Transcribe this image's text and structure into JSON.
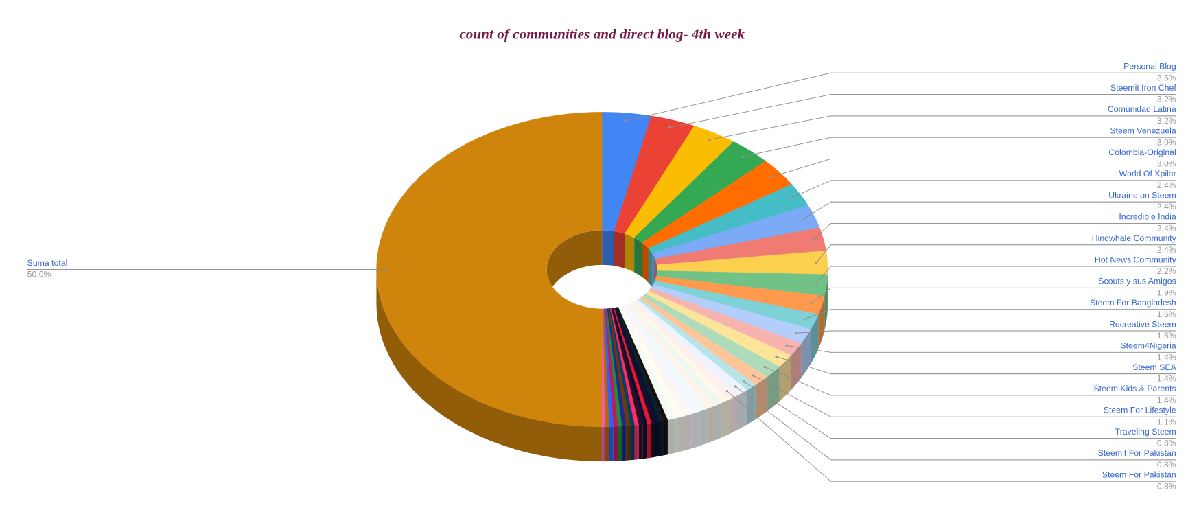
{
  "chart_data": {
    "type": "pie",
    "donut": true,
    "three_d": true,
    "title": "count of communities and direct blog- 4th week",
    "categories": [
      "Personal Blog",
      "Steemit Iron Chef",
      "Comunidad Latina",
      "Steem Venezuela",
      "Colombia-Original",
      "World Of Xpilar",
      "Ukraine on Steem",
      "Incredible India",
      "Hindwhale Community",
      "Hot News Community",
      "Scouts y sus Amigos",
      "Steem For Bangladesh",
      "Recreative Steem",
      "Steem4Nigeria",
      "Steem SEA",
      "Steem Kids & Parents",
      "Steem For Lifestyle",
      "Traveling Steem",
      "Steemit For Pakistan",
      "Steem For Pakistan",
      null,
      null,
      null,
      null,
      null,
      null,
      null,
      null,
      null,
      null,
      null,
      null,
      null,
      null,
      null,
      null,
      null,
      null,
      null,
      null,
      null,
      null,
      null,
      null,
      "Suma total"
    ],
    "values": [
      3.5,
      3.2,
      3.2,
      3.0,
      3.0,
      2.4,
      2.4,
      2.4,
      2.4,
      2.2,
      1.9,
      1.6,
      1.6,
      1.4,
      1.4,
      1.4,
      1.1,
      0.8,
      0.8,
      0.8,
      0.6,
      0.6,
      0.6,
      0.6,
      0.6,
      0.6,
      0.6,
      0.6,
      0.3,
      0.3,
      0.3,
      0.3,
      0.3,
      0.3,
      0.3,
      0.3,
      0.3,
      0.3,
      0.3,
      0.3,
      0.3,
      0.3,
      0.3,
      0.2,
      50.0
    ],
    "value_labels": [
      "3.5%",
      "3.2%",
      "3.2%",
      "3.0%",
      "3.0%",
      "2.4%",
      "2.4%",
      "2.4%",
      "2.4%",
      "2.2%",
      "1.9%",
      "1.6%",
      "1.6%",
      "1.4%",
      "1.4%",
      "1.4%",
      "1.1%",
      "0.8%",
      "0.8%",
      "0.8%",
      null,
      null,
      null,
      null,
      null,
      null,
      null,
      null,
      null,
      null,
      null,
      null,
      null,
      null,
      null,
      null,
      null,
      null,
      null,
      null,
      null,
      null,
      null,
      null,
      "50.0%"
    ],
    "colors": [
      "#4285f4",
      "#ea4335",
      "#fbbc04",
      "#34a853",
      "#ff6d01",
      "#46bdc6",
      "#7baaf7",
      "#f07b72",
      "#fcd04f",
      "#71c287",
      "#ff994d",
      "#7ed1d7",
      "#b3cefb",
      "#f7b4ae",
      "#fde49b",
      "#aedcba",
      "#ffc599",
      "#b5e5e8",
      "#ecf3fe",
      "#fdf0ef",
      "#fff8e8",
      "#eef8f1",
      "#fff3ea",
      "#f0fafb",
      "#f5f9ff",
      "#fef6f5",
      "#fffcf0",
      "#f2fbf5",
      "#1a1008",
      "#0b1f33",
      "#07122b",
      "#1b0b2e",
      "#e8192c",
      "#0d0d3a",
      "#2b1020",
      "#ff2a6d",
      "#0b3d5c",
      "#6b3a0b",
      "#202a8a",
      "#1e8c3a",
      "#c2185b",
      "#2962ff",
      "#b36b00",
      "#ff4fd8",
      "#cf850c"
    ]
  }
}
